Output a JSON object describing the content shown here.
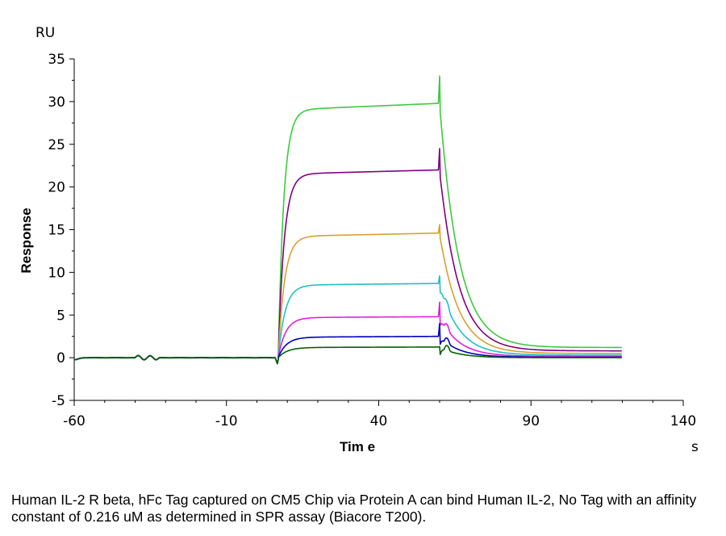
{
  "caption": "Human IL-2 R beta, hFc Tag captured on CM5 Chip via Protein A can bind Human IL-2, No Tag with an affinity constant of 0.216 uM as determined in SPR assay (Biacore T200).",
  "chart_data": {
    "type": "line",
    "title": "",
    "xlabel": "Tim e",
    "ylabel": "Response",
    "x_unit": "s",
    "y_unit": "RU",
    "xlim": [
      -60,
      140
    ],
    "ylim": [
      -5,
      35
    ],
    "x_ticks": [
      -60,
      -10,
      40,
      90,
      140
    ],
    "y_ticks": [
      -5,
      0,
      5,
      10,
      15,
      20,
      25,
      30,
      35
    ],
    "grid": false,
    "legend": "none",
    "association_start": 7,
    "dissociation_start": 60,
    "x_end": 120,
    "series": [
      {
        "color": "#3ec93e",
        "plateau": 29.0,
        "plateau_end": 29.8,
        "spike": 33.0,
        "final": 1.2
      },
      {
        "color": "#800080",
        "plateau": 21.5,
        "plateau_end": 22.0,
        "spike": 24.5,
        "final": 0.8
      },
      {
        "color": "#d8a030",
        "plateau": 14.2,
        "plateau_end": 14.6,
        "spike": 15.6,
        "final": 0.5
      },
      {
        "color": "#20c0c8",
        "plateau": 8.5,
        "plateau_end": 8.7,
        "spike": 9.6,
        "final": 0.3
      },
      {
        "color": "#e020e0",
        "plateau": 4.7,
        "plateau_end": 4.8,
        "spike": 6.5,
        "final": 0.15
      },
      {
        "color": "#0000c0",
        "plateau": 2.4,
        "plateau_end": 2.5,
        "spike": 4.0,
        "final": 0.05
      },
      {
        "color": "#006400",
        "plateau": 1.2,
        "plateau_end": 1.25,
        "spike": 1.3,
        "final": 0.0
      }
    ]
  }
}
